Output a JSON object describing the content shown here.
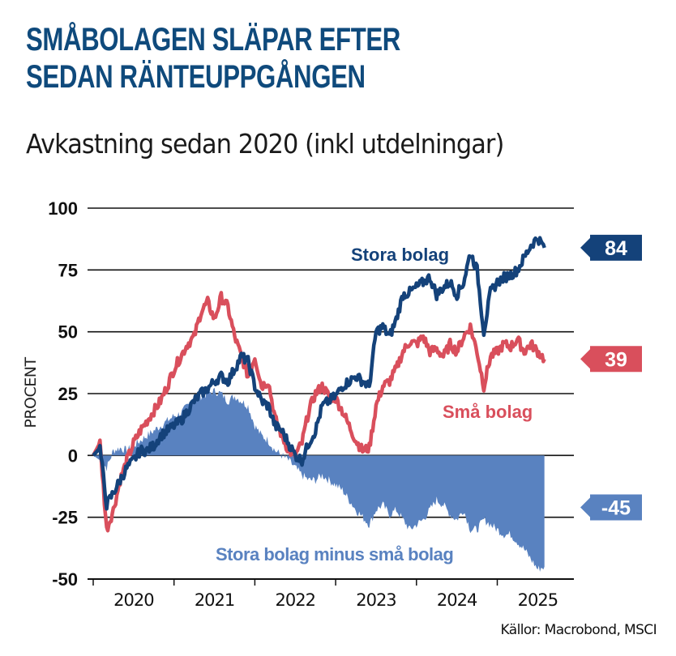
{
  "title_lines": [
    "SMÅBOLAGEN SLÄPAR EFTER",
    "SEDAN RÄNTEUPPGÅNGEN"
  ],
  "subtitle": "Avkastning sedan 2020 (inkl utdelningar)",
  "source": "Källor: Macrobond, MSCI",
  "colors": {
    "title": "#0f4a7c",
    "stora": "#14427a",
    "sma": "#d94f5c",
    "diff": "#5982c0"
  },
  "chart_data": {
    "type": "line",
    "title": "SMÅBOLAGEN SLÄPAR EFTER SEDAN RÄNTEUPPGÅNGEN",
    "subtitle": "Avkastning sedan 2020 (inkl utdelningar)",
    "ylabel": "PROCENT",
    "xlabel": "",
    "ylim": [
      -50,
      100
    ],
    "yticks": [
      100,
      75,
      50,
      25,
      0,
      -25,
      -50
    ],
    "ytick_labels": [
      "100",
      "75",
      "50",
      "25",
      "0",
      "-25",
      "-50"
    ],
    "x_tick_labels": [
      "2020",
      "2021",
      "2022",
      "2023",
      "2024",
      "2025"
    ],
    "x_start": 2020.0,
    "x_end": 2026.0,
    "x_step_months": 1,
    "grid": true,
    "series": [
      {
        "name": "Stora bolag",
        "label": "Stora bolag",
        "end_label": "84",
        "values": [
          0,
          3,
          -20,
          -15,
          -10,
          -5,
          -2,
          2,
          2,
          4,
          8,
          10,
          12,
          14,
          18,
          22,
          25,
          27,
          30,
          32,
          30,
          35,
          40,
          38,
          28,
          22,
          20,
          12,
          10,
          5,
          0,
          -2,
          5,
          10,
          20,
          22,
          24,
          28,
          30,
          32,
          30,
          28,
          50,
          52,
          48,
          55,
          65,
          66,
          68,
          70,
          72,
          65,
          68,
          70,
          65,
          70,
          82,
          75,
          50,
          66,
          70,
          72,
          73,
          75,
          80,
          85,
          88,
          84
        ]
      },
      {
        "name": "Små bolag",
        "label": "Små bolag",
        "end_label": "39",
        "values": [
          0,
          5,
          -30,
          -22,
          -10,
          -2,
          5,
          10,
          14,
          18,
          22,
          28,
          35,
          40,
          45,
          48,
          58,
          62,
          55,
          64,
          60,
          48,
          40,
          32,
          40,
          28,
          30,
          15,
          8,
          2,
          0,
          5,
          18,
          25,
          28,
          24,
          23,
          18,
          12,
          6,
          2,
          3,
          20,
          28,
          30,
          35,
          42,
          46,
          45,
          48,
          42,
          43,
          40,
          45,
          42,
          48,
          52,
          42,
          28,
          40,
          42,
          45,
          44,
          47,
          42,
          45,
          42,
          39
        ]
      },
      {
        "name": "Stora bolag minus små bolag",
        "label": "Stora bolag minus små bolag",
        "end_label": "-45",
        "values": [
          0,
          -2,
          -5,
          2,
          3,
          2,
          4,
          6,
          8,
          10,
          12,
          14,
          16,
          17,
          20,
          22,
          24,
          25,
          26,
          25,
          22,
          24,
          22,
          20,
          12,
          8,
          6,
          2,
          0,
          -2,
          -5,
          -8,
          -10,
          -10,
          -8,
          -10,
          -12,
          -14,
          -18,
          -22,
          -25,
          -28,
          -22,
          -20,
          -24,
          -22,
          -26,
          -30,
          -28,
          -26,
          -22,
          -18,
          -20,
          -24,
          -26,
          -22,
          -30,
          -30,
          -26,
          -28,
          -30,
          -32,
          -32,
          -35,
          -38,
          -42,
          -46,
          -45
        ]
      }
    ]
  }
}
